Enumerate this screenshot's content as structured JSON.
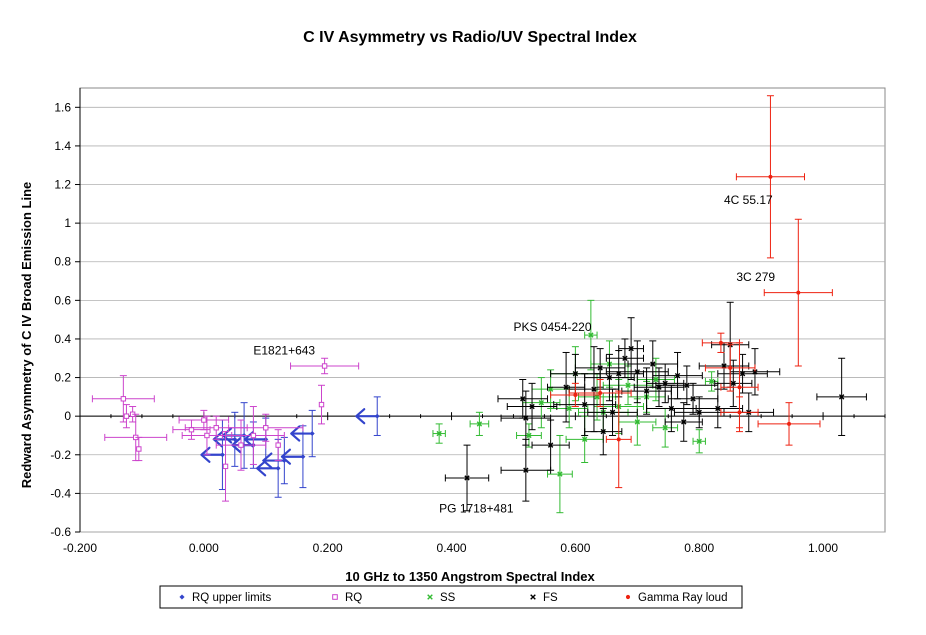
{
  "chart_data": {
    "type": "scatter",
    "title": "C IV Asymmetry vs Radio/UV Spectral Index",
    "xlabel": "10 GHz to 1350 Angstrom Spectral Index",
    "ylabel": "Redward Asymmetry of  C IV Broad Emission Line",
    "xlim": [
      -0.2,
      1.1
    ],
    "ylim": [
      -0.6,
      1.7
    ],
    "xticks": [
      -0.2,
      0.0,
      0.2,
      0.4,
      0.6,
      0.8,
      1.0
    ],
    "xtick_labels": [
      "-0.200",
      "0.000",
      "0.200",
      "0.400",
      "0.600",
      "0.800",
      "1.000"
    ],
    "yticks": [
      -0.6,
      -0.4,
      -0.2,
      0,
      0.2,
      0.4,
      0.6,
      0.8,
      1,
      1.2,
      1.4,
      1.6
    ],
    "ytick_labels": [
      "-0.6",
      "-0.4",
      "-0.2",
      "0",
      "0.2",
      "0.4",
      "0.6",
      "0.8",
      "1",
      "1.2",
      "1.4",
      "1.6"
    ],
    "grid": "horizontal",
    "legend_position": "bottom",
    "series": [
      {
        "name": "RQ upper limits",
        "color": "#3344cc",
        "marker": "diamond",
        "points": [
          {
            "x": 0.28,
            "y": 0.0,
            "yerr": 0.1
          },
          {
            "x": 0.175,
            "y": -0.09,
            "yerr": 0.12
          },
          {
            "x": 0.16,
            "y": -0.21,
            "yerr": 0.16
          },
          {
            "x": 0.13,
            "y": -0.23,
            "yerr": 0.12
          },
          {
            "x": 0.12,
            "y": -0.27,
            "yerr": 0.15
          },
          {
            "x": 0.1,
            "y": -0.12,
            "yerr": 0.11
          },
          {
            "x": 0.08,
            "y": -0.15,
            "yerr": 0.12
          },
          {
            "x": 0.065,
            "y": -0.1,
            "yerr": 0.17
          },
          {
            "x": 0.05,
            "y": -0.12,
            "yerr": 0.14
          },
          {
            "x": 0.03,
            "y": -0.2,
            "yerr": 0.18
          }
        ]
      },
      {
        "name": "RQ",
        "color": "#cc44cc",
        "marker": "square",
        "points": [
          {
            "x": -0.13,
            "y": 0.09,
            "xerr": 0.05,
            "yerr": 0.12
          },
          {
            "x": -0.125,
            "y": 0.0,
            "yerr": 0.06
          },
          {
            "x": -0.115,
            "y": 0.01,
            "yerr": 0.04
          },
          {
            "x": -0.11,
            "y": -0.11,
            "xerr": 0.05,
            "yerr": 0.12
          },
          {
            "x": -0.105,
            "y": -0.17,
            "yerr": 0.06
          },
          {
            "x": 0.195,
            "y": 0.26,
            "xerr": 0.055,
            "yerr": 0.04
          },
          {
            "x": 0.19,
            "y": 0.06,
            "yerr": 0.1
          },
          {
            "x": -0.02,
            "y": -0.07,
            "xerr": 0.03,
            "yerr": 0.05
          },
          {
            "x": 0.0,
            "y": -0.02,
            "xerr": 0.04,
            "yerr": 0.05
          },
          {
            "x": 0.005,
            "y": -0.1,
            "xerr": 0.04,
            "yerr": 0.1
          },
          {
            "x": 0.02,
            "y": -0.06,
            "xerr": 0.05,
            "yerr": 0.06
          },
          {
            "x": 0.035,
            "y": -0.26,
            "yerr": 0.18
          },
          {
            "x": 0.06,
            "y": -0.15,
            "xerr": 0.04,
            "yerr": 0.13
          },
          {
            "x": 0.08,
            "y": -0.1,
            "xerr": 0.05,
            "yerr": 0.15
          },
          {
            "x": 0.1,
            "y": -0.06,
            "xerr": 0.06,
            "yerr": 0.07
          },
          {
            "x": 0.12,
            "y": -0.15,
            "yerr": 0.08
          }
        ]
      },
      {
        "name": "SS",
        "color": "#33bb33",
        "marker": "x",
        "points": [
          {
            "x": 0.38,
            "y": -0.09,
            "xerr": 0.01,
            "yerr": 0.05
          },
          {
            "x": 0.445,
            "y": -0.04,
            "xerr": 0.015,
            "yerr": 0.06
          },
          {
            "x": 0.525,
            "y": -0.1,
            "xerr": 0.02,
            "yerr": 0.06
          },
          {
            "x": 0.545,
            "y": 0.07,
            "xerr": 0.03,
            "yerr": 0.13
          },
          {
            "x": 0.56,
            "y": 0.14,
            "xerr": 0.03,
            "yerr": 0.1
          },
          {
            "x": 0.575,
            "y": -0.3,
            "xerr": 0.02,
            "yerr": 0.2
          },
          {
            "x": 0.59,
            "y": 0.04,
            "xerr": 0.03,
            "yerr": 0.1
          },
          {
            "x": 0.6,
            "y": 0.22,
            "xerr": 0.04,
            "yerr": 0.14
          },
          {
            "x": 0.615,
            "y": -0.12,
            "xerr": 0.03,
            "yerr": 0.12
          },
          {
            "x": 0.625,
            "y": 0.42,
            "xerr": 0.01,
            "yerr": 0.18
          },
          {
            "x": 0.635,
            "y": 0.1,
            "xerr": 0.03,
            "yerr": 0.12
          },
          {
            "x": 0.645,
            "y": 0.02,
            "xerr": 0.04,
            "yerr": 0.1
          },
          {
            "x": 0.655,
            "y": 0.27,
            "xerr": 0.03,
            "yerr": 0.12
          },
          {
            "x": 0.67,
            "y": 0.05,
            "xerr": 0.04,
            "yerr": 0.14
          },
          {
            "x": 0.685,
            "y": 0.16,
            "xerr": 0.04,
            "yerr": 0.1
          },
          {
            "x": 0.7,
            "y": -0.03,
            "xerr": 0.03,
            "yerr": 0.12
          },
          {
            "x": 0.715,
            "y": 0.1,
            "xerr": 0.03,
            "yerr": 0.08
          },
          {
            "x": 0.73,
            "y": 0.19,
            "xerr": 0.03,
            "yerr": 0.11
          },
          {
            "x": 0.745,
            "y": -0.06,
            "xerr": 0.02,
            "yerr": 0.1
          },
          {
            "x": 0.8,
            "y": -0.13,
            "xerr": 0.01,
            "yerr": 0.06
          },
          {
            "x": 0.82,
            "y": 0.18,
            "xerr": 0.01,
            "yerr": 0.05
          }
        ]
      },
      {
        "name": "FS",
        "color": "#000000",
        "marker": "x",
        "points": [
          {
            "x": 0.425,
            "y": -0.32,
            "xerr": 0.035,
            "yerr": 0.17
          },
          {
            "x": 0.515,
            "y": 0.09,
            "xerr": 0.04,
            "yerr": 0.1
          },
          {
            "x": 0.52,
            "y": -0.01,
            "xerr": 0.04,
            "yerr": 0.14
          },
          {
            "x": 0.52,
            "y": -0.28,
            "xerr": 0.04,
            "yerr": 0.16
          },
          {
            "x": 0.53,
            "y": 0.05,
            "xerr": 0.04,
            "yerr": 0.12
          },
          {
            "x": 0.56,
            "y": -0.15,
            "xerr": 0.03,
            "yerr": 0.13
          },
          {
            "x": 0.585,
            "y": 0.15,
            "xerr": 0.03,
            "yerr": 0.18
          },
          {
            "x": 0.6,
            "y": 0.22,
            "xerr": 0.04,
            "yerr": 0.1
          },
          {
            "x": 0.615,
            "y": 0.06,
            "xerr": 0.05,
            "yerr": 0.16
          },
          {
            "x": 0.63,
            "y": 0.14,
            "xerr": 0.04,
            "yerr": 0.22
          },
          {
            "x": 0.64,
            "y": 0.25,
            "xerr": 0.04,
            "yerr": 0.1
          },
          {
            "x": 0.645,
            "y": -0.08,
            "xerr": 0.03,
            "yerr": 0.12
          },
          {
            "x": 0.655,
            "y": 0.2,
            "xerr": 0.04,
            "yerr": 0.12
          },
          {
            "x": 0.66,
            "y": 0.02,
            "xerr": 0.04,
            "yerr": 0.12
          },
          {
            "x": 0.67,
            "y": 0.22,
            "xerr": 0.04,
            "yerr": 0.12
          },
          {
            "x": 0.68,
            "y": 0.3,
            "xerr": 0.03,
            "yerr": 0.1
          },
          {
            "x": 0.69,
            "y": 0.35,
            "xerr": 0.02,
            "yerr": 0.16
          },
          {
            "x": 0.7,
            "y": 0.23,
            "xerr": 0.05,
            "yerr": 0.16
          },
          {
            "x": 0.715,
            "y": 0.13,
            "xerr": 0.04,
            "yerr": 0.12
          },
          {
            "x": 0.725,
            "y": 0.27,
            "xerr": 0.04,
            "yerr": 0.12
          },
          {
            "x": 0.735,
            "y": 0.15,
            "xerr": 0.04,
            "yerr": 0.1
          },
          {
            "x": 0.745,
            "y": 0.17,
            "xerr": 0.03,
            "yerr": 0.1
          },
          {
            "x": 0.755,
            "y": 0.04,
            "xerr": 0.04,
            "yerr": 0.12
          },
          {
            "x": 0.765,
            "y": 0.21,
            "xerr": 0.04,
            "yerr": 0.12
          },
          {
            "x": 0.775,
            "y": -0.03,
            "xerr": 0.03,
            "yerr": 0.1
          },
          {
            "x": 0.78,
            "y": 0.16,
            "xerr": 0.05,
            "yerr": 0.1
          },
          {
            "x": 0.79,
            "y": 0.09,
            "xerr": 0.04,
            "yerr": 0.08
          },
          {
            "x": 0.8,
            "y": 0.02,
            "xerr": 0.04,
            "yerr": 0.08
          },
          {
            "x": 0.83,
            "y": 0.04,
            "xerr": 0.04,
            "yerr": 0.1
          },
          {
            "x": 0.84,
            "y": 0.26,
            "xerr": 0.04,
            "yerr": 0.12
          },
          {
            "x": 0.85,
            "y": 0.37,
            "xerr": 0.03,
            "yerr": 0.22
          },
          {
            "x": 0.855,
            "y": 0.17,
            "xerr": 0.03,
            "yerr": 0.12
          },
          {
            "x": 0.87,
            "y": 0.22,
            "xerr": 0.04,
            "yerr": 0.1
          },
          {
            "x": 0.88,
            "y": 0.02,
            "xerr": 0.04,
            "yerr": 0.1
          },
          {
            "x": 0.89,
            "y": 0.23,
            "xerr": 0.04,
            "yerr": 0.12
          },
          {
            "x": 1.03,
            "y": 0.1,
            "xerr": 0.04,
            "yerr": 0.2
          }
        ]
      },
      {
        "name": "Gamma Ray loud",
        "color": "#ee2211",
        "marker": "circle",
        "points": [
          {
            "x": 0.915,
            "y": 1.24,
            "xerr": 0.055,
            "yerr": 0.42
          },
          {
            "x": 0.96,
            "y": 0.64,
            "xerr": 0.055,
            "yerr": 0.38
          },
          {
            "x": 0.945,
            "y": -0.04,
            "xerr": 0.05,
            "yerr": 0.11
          },
          {
            "x": 0.865,
            "y": 0.15,
            "xerr": 0.03,
            "yerr": 0.23
          },
          {
            "x": 0.85,
            "y": 0.25,
            "xerr": 0.04,
            "yerr": 0.12
          },
          {
            "x": 0.835,
            "y": 0.38,
            "xerr": 0.03,
            "yerr": 0.05
          },
          {
            "x": 0.865,
            "y": 0.02,
            "xerr": 0.03,
            "yerr": 0.08
          },
          {
            "x": 0.67,
            "y": -0.12,
            "xerr": 0.02,
            "yerr": 0.25
          },
          {
            "x": 0.64,
            "y": 0.12,
            "xerr": 0.05,
            "yerr": 0.07
          },
          {
            "x": 0.6,
            "y": 0.11,
            "xerr": 0.04,
            "yerr": 0.06
          }
        ]
      }
    ],
    "annotations": [
      {
        "text": "4C 55.17",
        "x": 0.84,
        "y": 1.1
      },
      {
        "text": "3C 279",
        "x": 0.86,
        "y": 0.7
      },
      {
        "text": "PKS 0454-220",
        "x": 0.5,
        "y": 0.44
      },
      {
        "text": "E1821+643",
        "x": 0.08,
        "y": 0.32
      },
      {
        "text": "PG 1718+481",
        "x": 0.38,
        "y": -0.5
      }
    ]
  }
}
